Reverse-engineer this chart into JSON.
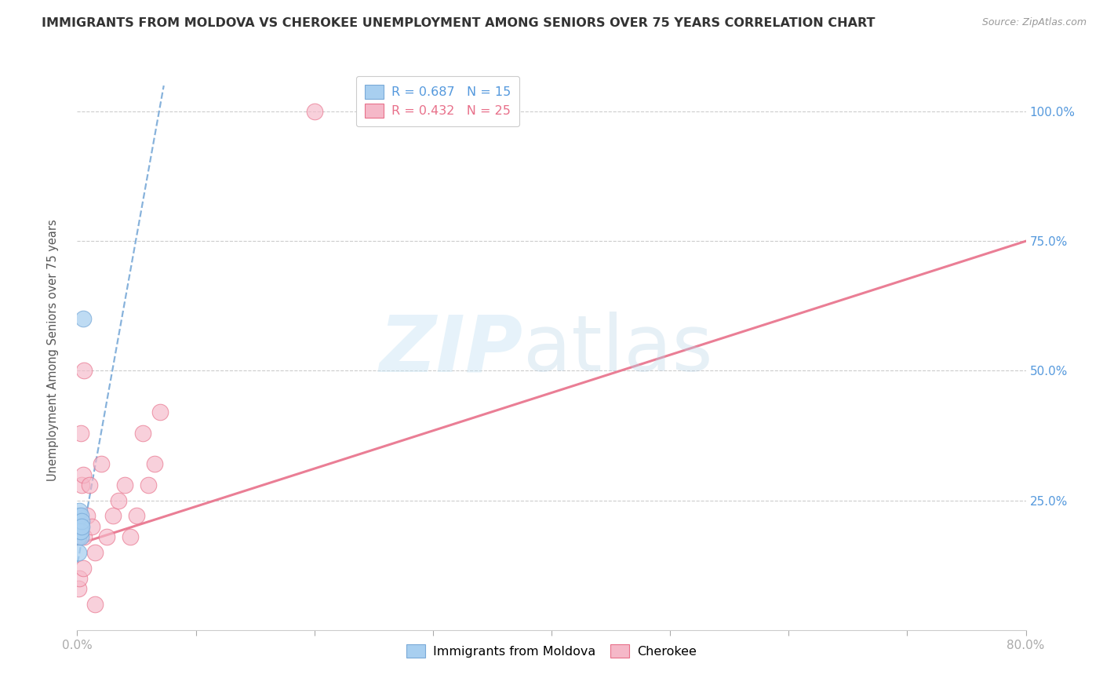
{
  "title": "IMMIGRANTS FROM MOLDOVA VS CHEROKEE UNEMPLOYMENT AMONG SENIORS OVER 75 YEARS CORRELATION CHART",
  "source": "Source: ZipAtlas.com",
  "ylabel": "Unemployment Among Seniors over 75 years",
  "legend_blue_label": "Immigrants from Moldova",
  "legend_pink_label": "Cherokee",
  "legend_blue_R": "R = 0.687",
  "legend_blue_N": "N = 15",
  "legend_pink_R": "R = 0.432",
  "legend_pink_N": "N = 25",
  "blue_color": "#a8cff0",
  "pink_color": "#f5b8c8",
  "blue_edge_color": "#7aaad8",
  "pink_edge_color": "#e8708a",
  "blue_line_color": "#7aaad8",
  "pink_line_color": "#e8708a",
  "blue_scatter_x": [
    0.001,
    0.001,
    0.001,
    0.001,
    0.002,
    0.002,
    0.002,
    0.002,
    0.003,
    0.003,
    0.003,
    0.003,
    0.004,
    0.004,
    0.005
  ],
  "blue_scatter_y": [
    0.2,
    0.18,
    0.22,
    0.15,
    0.19,
    0.21,
    0.2,
    0.23,
    0.2,
    0.22,
    0.18,
    0.19,
    0.21,
    0.2,
    0.6
  ],
  "pink_scatter_x": [
    0.001,
    0.002,
    0.003,
    0.004,
    0.005,
    0.005,
    0.006,
    0.008,
    0.01,
    0.012,
    0.015,
    0.02,
    0.025,
    0.03,
    0.035,
    0.04,
    0.045,
    0.05,
    0.055,
    0.06,
    0.065,
    0.07,
    0.2,
    0.006,
    0.015
  ],
  "pink_scatter_y": [
    0.08,
    0.1,
    0.38,
    0.28,
    0.3,
    0.12,
    0.18,
    0.22,
    0.28,
    0.2,
    0.15,
    0.32,
    0.18,
    0.22,
    0.25,
    0.28,
    0.18,
    0.22,
    0.38,
    0.28,
    0.32,
    0.42,
    1.0,
    0.5,
    0.05
  ],
  "xmin": 0.0,
  "xmax": 0.8,
  "ymin": 0.0,
  "ymax": 1.08,
  "blue_trend_x": [
    0.0004,
    0.073
  ],
  "blue_trend_y": [
    0.13,
    1.05
  ],
  "pink_trend_x": [
    0.0,
    0.8
  ],
  "pink_trend_y": [
    0.165,
    0.75
  ],
  "x_tick_positions": [
    0.0,
    0.1,
    0.2,
    0.3,
    0.4,
    0.5,
    0.6,
    0.7,
    0.8
  ],
  "y_tick_positions": [
    0.25,
    0.5,
    0.75,
    1.0
  ],
  "grid_color": "#cccccc",
  "bg_color": "#ffffff",
  "title_color": "#333333",
  "source_color": "#999999",
  "ylabel_color": "#555555",
  "y_tick_color": "#5599dd",
  "x_tick_color": "#aaaaaa"
}
